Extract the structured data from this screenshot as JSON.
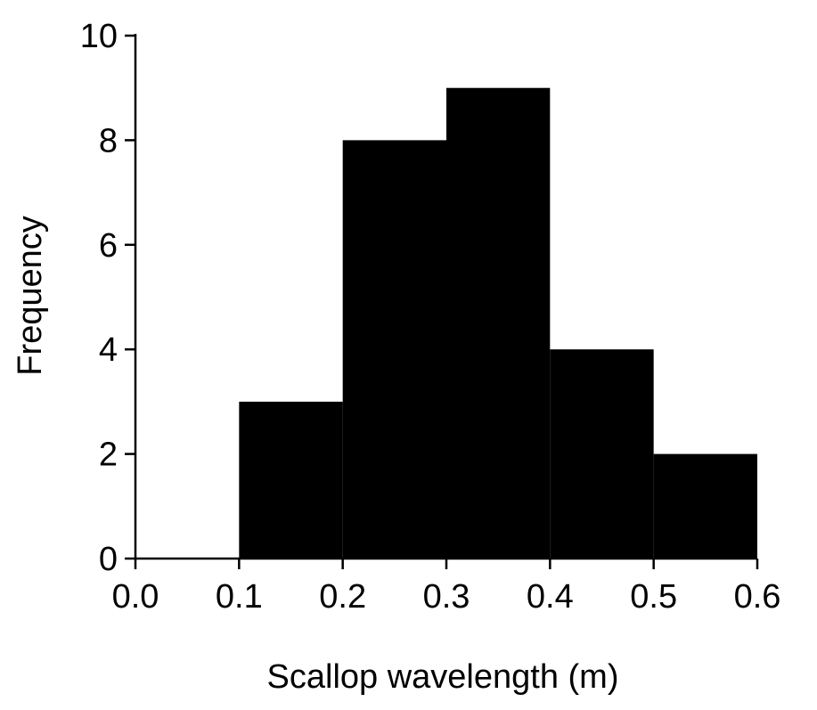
{
  "chart_data": {
    "type": "bar",
    "title": "",
    "xlabel": "Scallop wavelength  (m)",
    "ylabel": "Frequency",
    "bins": [
      {
        "x0": 0.1,
        "x1": 0.2,
        "value": 3
      },
      {
        "x0": 0.2,
        "x1": 0.3,
        "value": 8
      },
      {
        "x0": 0.3,
        "x1": 0.4,
        "value": 9
      },
      {
        "x0": 0.4,
        "x1": 0.5,
        "value": 4
      },
      {
        "x0": 0.5,
        "x1": 0.6,
        "value": 2
      }
    ],
    "xlim": [
      0.0,
      0.6
    ],
    "ylim": [
      0,
      10
    ],
    "xticks": [
      "0.0",
      "0.1",
      "0.2",
      "0.3",
      "0.4",
      "0.5",
      "0.6"
    ],
    "yticks": [
      "0",
      "2",
      "4",
      "6",
      "8",
      "10"
    ],
    "grid": false,
    "bar_color": "#000000"
  }
}
